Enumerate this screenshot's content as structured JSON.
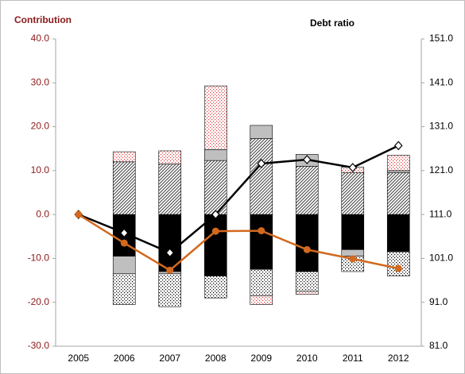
{
  "chart_data": {
    "type": "bar",
    "ylabel": "Contribution",
    "y2label": "Debt ratio",
    "categories": [
      "2005",
      "2006",
      "2007",
      "2008",
      "2009",
      "2010",
      "2011",
      "2012"
    ],
    "series": [
      {
        "type": "bar",
        "pattern": "solid",
        "color": "#000000",
        "values": [
          0,
          -9.5,
          -13,
          -14,
          -12.5,
          -13,
          -8,
          -8.5
        ]
      },
      {
        "type": "bar",
        "pattern": "hatch",
        "color": "#404040",
        "values": [
          0,
          12,
          11.5,
          12.3,
          17.3,
          11,
          9.5,
          9.5
        ]
      },
      {
        "type": "bar",
        "pattern": "solid",
        "color": "#bfbfbf",
        "values": [
          0,
          -4,
          -0.5,
          2.5,
          3,
          2.7,
          -1.5,
          0.5
        ]
      },
      {
        "type": "bar",
        "pattern": "dots",
        "color": "#000000",
        "values": [
          0,
          -7,
          -7.5,
          -5,
          -6,
          -4.5,
          -3.5,
          -5.5
        ]
      },
      {
        "type": "bar",
        "pattern": "dots",
        "color": "#e03c3c",
        "values": [
          0,
          2.3,
          3,
          14.5,
          -2,
          -0.7,
          1.3,
          3.5
        ]
      },
      {
        "type": "line",
        "axis": "y2",
        "marker": "diamond",
        "color": "#000000",
        "values": [
          111,
          106.8,
          102.3,
          111,
          122.6,
          123.5,
          121.7,
          126.7
        ]
      },
      {
        "type": "line",
        "axis": "y2",
        "marker": "circle",
        "color": "#d2691e",
        "values": [
          111,
          104.5,
          98.3,
          107.2,
          107.3,
          103,
          100.9,
          98.7
        ]
      }
    ],
    "ylim": [
      -30,
      40
    ],
    "yticks": [
      {
        "value": 40,
        "label": "40.0"
      },
      {
        "value": 30,
        "label": "30.0"
      },
      {
        "value": 20,
        "label": "20.0"
      },
      {
        "value": 10,
        "label": "10.0"
      },
      {
        "value": 0,
        "label": "0.0"
      },
      {
        "value": -10,
        "label": "-10.0"
      },
      {
        "value": -20,
        "label": "-20.0"
      },
      {
        "value": -30,
        "label": "-30.0"
      }
    ],
    "y2lim": [
      81,
      151
    ],
    "y2ticks": [
      {
        "value": 151,
        "label": "151.0"
      },
      {
        "value": 141,
        "label": "141.0"
      },
      {
        "value": 131,
        "label": "131.0"
      },
      {
        "value": 121,
        "label": "121.0"
      },
      {
        "value": 111,
        "label": "111.0"
      },
      {
        "value": 101,
        "label": "101.0"
      },
      {
        "value": 91,
        "label": "91.0"
      },
      {
        "value": 81,
        "label": "81.0"
      }
    ],
    "ytick_color": "#8b1a1a"
  }
}
